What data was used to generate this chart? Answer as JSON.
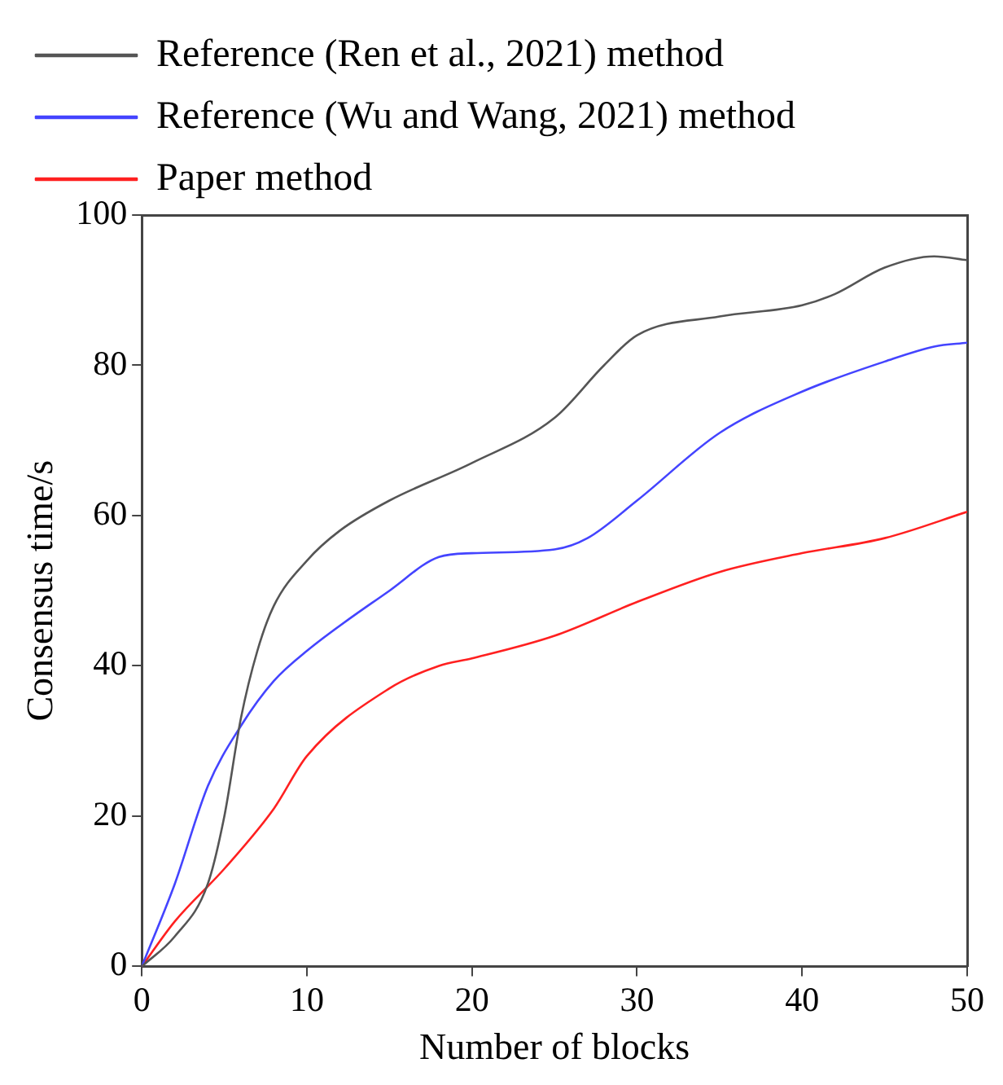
{
  "chart_data": {
    "type": "line",
    "xlabel": "Number of blocks",
    "ylabel": "Consensus time/s",
    "xlim": [
      0,
      50
    ],
    "xticks": [
      0,
      10,
      20,
      30,
      40,
      50
    ],
    "ylim": [
      0,
      100
    ],
    "yticks": [
      0,
      20,
      40,
      60,
      80,
      100
    ],
    "grid": false,
    "legend": "top left",
    "marker": "none",
    "line_style": "solid",
    "series": [
      {
        "name": "Reference (Ren et al., 2021) method",
        "color": "#555555",
        "x": [
          0,
          2,
          4,
          5,
          6,
          7,
          8,
          10,
          12,
          15,
          20,
          25,
          28,
          30,
          35,
          40,
          42,
          45,
          48,
          50
        ],
        "values": [
          0,
          4,
          11,
          20,
          33,
          42,
          48,
          54,
          58,
          62,
          67,
          73,
          80,
          84,
          86.5,
          88,
          89.5,
          93,
          94.5,
          94
        ]
      },
      {
        "name": "Reference (Wu and Wang, 2021) method",
        "color": "#4444ff",
        "x": [
          0,
          2,
          4,
          6,
          8,
          10,
          15,
          18,
          20,
          25,
          27,
          30,
          35,
          40,
          45,
          48,
          50
        ],
        "values": [
          0,
          11,
          24,
          32,
          38,
          42,
          50,
          54.5,
          55,
          55.5,
          57,
          62,
          71,
          76.5,
          80.5,
          82.5,
          83
        ]
      },
      {
        "name": "Paper method",
        "color": "#ff2020",
        "x": [
          0,
          2,
          5,
          8,
          10,
          15,
          18,
          20,
          25,
          30,
          35,
          40,
          45,
          50
        ],
        "values": [
          0,
          6,
          13,
          21,
          28,
          37,
          40,
          41,
          44,
          48.5,
          52.5,
          55,
          57,
          60.5
        ]
      }
    ]
  }
}
